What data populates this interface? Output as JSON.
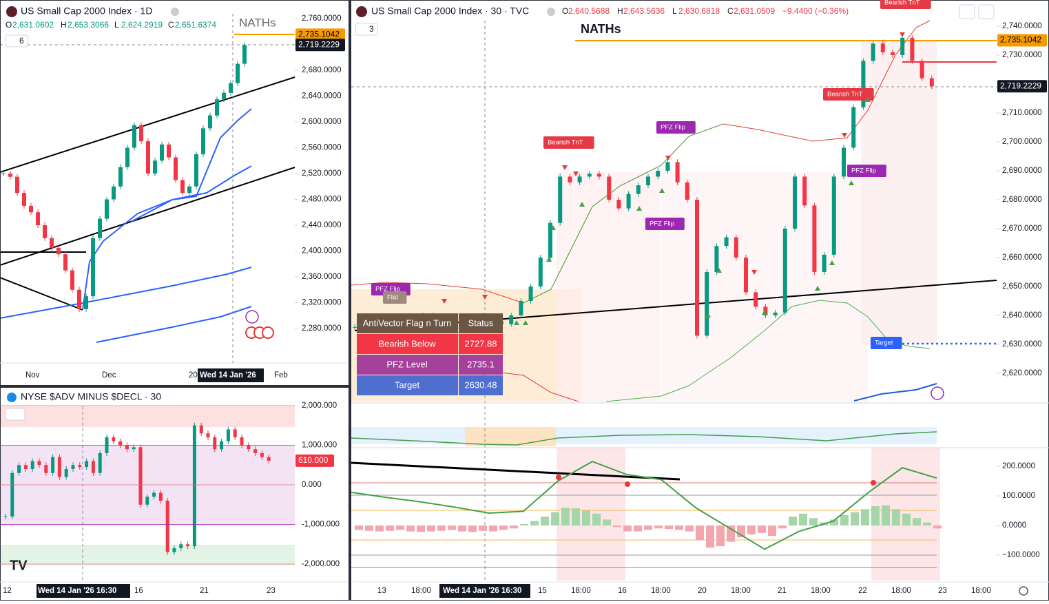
{
  "left_chart": {
    "title": "US Small Cap 2000 Index · 1D",
    "ohlc": [
      "O",
      "2,631.0602",
      "H",
      "2,653.3066",
      "L",
      "2,624.2919",
      "C",
      "2,651.6374"
    ],
    "legend_count": "6",
    "annotation": "NATHs",
    "price_ticks": [
      {
        "value": 2760,
        "label": "2,760.0000"
      },
      {
        "value": 2720,
        "label": "2,720.0000"
      },
      {
        "value": 2680,
        "label": "2,680.0000"
      },
      {
        "value": 2640,
        "label": "2,640.0000"
      },
      {
        "value": 2600,
        "label": "2,600.0000"
      },
      {
        "value": 2560,
        "label": "2,560.0000"
      },
      {
        "value": 2520,
        "label": "2,520.0000"
      },
      {
        "value": 2480,
        "label": "2,480.0000"
      },
      {
        "value": 2440,
        "label": "2,440.0000"
      },
      {
        "value": 2400,
        "label": "2,400.0000"
      },
      {
        "value": 2360,
        "label": "2,360.0000"
      },
      {
        "value": 2320,
        "label": "2,320.0000"
      },
      {
        "value": 2280,
        "label": "2,280.0000"
      }
    ],
    "price_tags": [
      {
        "value": 2735.1042,
        "label": "2,735.1042"
      },
      {
        "value": 2719.2229,
        "label": "2,719.2229"
      }
    ],
    "time_labels": [
      "Nov",
      "Dec",
      "20",
      "Wed 14 Jan '26",
      "Feb"
    ],
    "closes": [
      2520,
      2515,
      2490,
      2470,
      2460,
      2440,
      2420,
      2405,
      2395,
      2370,
      2340,
      2310,
      2330,
      2420,
      2450,
      2480,
      2500,
      2530,
      2560,
      2595,
      2570,
      2520,
      2540,
      2565,
      2545,
      2510,
      2490,
      2500,
      2550,
      2590,
      2610,
      2635,
      2645,
      2660,
      2690,
      2719
    ]
  },
  "breadth_chart": {
    "title": "NYSE $ADV MINUS $DECL · 30",
    "ticks": [
      {
        "value": 2000,
        "label": "2,000.000"
      },
      {
        "value": 1000,
        "label": "1,000.000"
      },
      {
        "value": 0,
        "label": "0.000"
      },
      {
        "value": -1000,
        "label": "-1,000.000"
      },
      {
        "value": -2000,
        "label": "-2,000.000"
      }
    ],
    "last_tag": {
      "value": 610,
      "label": "610.000"
    },
    "time_labels": [
      "12",
      "Wed 14 Jan '26  16:30",
      "16",
      "21",
      "23"
    ],
    "closes": [
      -800,
      300,
      500,
      400,
      600,
      500,
      300,
      700,
      200,
      400,
      500,
      450,
      600,
      300,
      800,
      1200,
      1100,
      1000,
      900,
      950,
      -500,
      -300,
      -200,
      -400,
      -1700,
      -1600,
      -1500,
      -1550,
      1500,
      1300,
      1200,
      900,
      1100,
      1400,
      1200,
      1000,
      900,
      800,
      700,
      610
    ]
  },
  "main_chart": {
    "title": "US Small Cap 2000 Index · 30 · TVC",
    "ohlc": [
      "O",
      "2,640.5688",
      "H",
      "2,643.5636",
      "L",
      "2,630.6818",
      "C",
      "2,631.0509",
      "−9.4400 (−0.36%)"
    ],
    "legend_count": "3",
    "annotation": "NATHs",
    "price_ticks": [
      {
        "value": 2740,
        "label": "2,740.0000"
      },
      {
        "value": 2730,
        "label": "2,730.0000"
      },
      {
        "value": 2720,
        "label": "2,720.0000"
      },
      {
        "value": 2710,
        "label": "2,710.0000"
      },
      {
        "value": 2700,
        "label": "2,700.0000"
      },
      {
        "value": 2690,
        "label": "2,690.0000"
      },
      {
        "value": 2680,
        "label": "2,680.0000"
      },
      {
        "value": 2670,
        "label": "2,670.0000"
      },
      {
        "value": 2660,
        "label": "2,660.0000"
      },
      {
        "value": 2650,
        "label": "2,650.0000"
      },
      {
        "value": 2640,
        "label": "2,640.0000"
      },
      {
        "value": 2630,
        "label": "2,630.0000"
      },
      {
        "value": 2620,
        "label": "2,620.0000"
      }
    ],
    "price_tags": [
      {
        "value": 2735.1042,
        "label": "2,735.1042"
      },
      {
        "value": 2719.2229,
        "label": "2,719.2229"
      }
    ],
    "osc_ticks": [
      {
        "value": 200,
        "label": "200.0000"
      },
      {
        "value": 100,
        "label": "100.0000"
      },
      {
        "value": 0,
        "label": "0.0000"
      },
      {
        "value": -100,
        "label": "−100.0000"
      }
    ],
    "time_labels": [
      "13",
      "18:00",
      "Wed 14 Jan '26  16:30",
      "15",
      "18:00",
      "16",
      "18:00",
      "20",
      "18:00",
      "21",
      "18:00",
      "22",
      "18:00",
      "23",
      "18:00"
    ],
    "signals": [
      "Bearish TnT",
      "PFZ Flip",
      "PFZ Flip",
      "PFZ Flip",
      "Bearish TnT",
      "PFZ Flip",
      "Target",
      "Flat",
      "Bearish TnT"
    ],
    "table": {
      "header": [
        "AntiVector Flag n Turn",
        "Status"
      ],
      "rows": [
        [
          "Bearish Below",
          "2727.88"
        ],
        [
          "PFZ Level",
          "2735.1"
        ],
        [
          "Target",
          "2630.48"
        ]
      ]
    },
    "closes": [
      2636,
      2637,
      2635,
      2638,
      2636,
      2639,
      2637,
      2640,
      2636,
      2638,
      2637,
      2635,
      2639,
      2636,
      2638,
      2637,
      2640,
      2645,
      2650,
      2660,
      2672,
      2688,
      2686,
      2688,
      2689,
      2688,
      2680,
      2677,
      2682,
      2685,
      2688,
      2690,
      2693,
      2686,
      2680,
      2633,
      2655,
      2664,
      2667,
      2660,
      2648,
      2643,
      2640,
      2641,
      2670,
      2688,
      2678,
      2655,
      2661,
      2688,
      2698,
      2712,
      2728,
      2734,
      2731,
      2730,
      2736,
      2728,
      2722,
      2719.2229
    ],
    "osc_line": [
      112,
      95,
      80,
      62,
      42,
      48,
      150,
      216,
      172,
      155,
      60,
      -10,
      -80,
      -20,
      15,
      110,
      195,
      160
    ],
    "osc_hist": [
      -15,
      -18,
      -20,
      -18,
      -15,
      -20,
      -22,
      -20,
      -18,
      -15,
      -20,
      -22,
      -18,
      -20,
      -15,
      -10,
      5,
      15,
      30,
      45,
      60,
      58,
      50,
      40,
      20,
      -5,
      -20,
      -20,
      -15,
      -10,
      -12,
      -15,
      -20,
      -50,
      -75,
      -70,
      -55,
      -40,
      -30,
      -25,
      -35,
      -10,
      30,
      40,
      25,
      10,
      20,
      35,
      45,
      55,
      65,
      68,
      55,
      40,
      25,
      10,
      -10
    ]
  }
}
